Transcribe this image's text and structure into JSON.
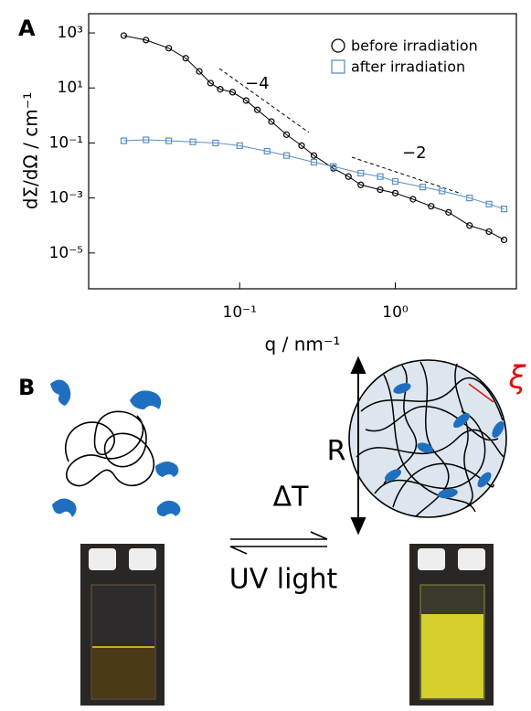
{
  "chart_data": {
    "type": "scatter",
    "xlabel": "q / nm⁻¹",
    "ylabel": "dΣ/dΩ / cm⁻¹",
    "xscale": "log",
    "yscale": "log",
    "xlim": [
      0.0107,
      6.0
    ],
    "ylim": [
      5e-07,
      5000
    ],
    "xticks": [
      {
        "value": 0.1,
        "label": "10⁻¹"
      },
      {
        "value": 1,
        "label": "10⁰"
      }
    ],
    "yticks": [
      {
        "value": 1000,
        "label": "10³"
      },
      {
        "value": 10,
        "label": "10¹"
      },
      {
        "value": 0.1,
        "label": "10⁻¹"
      },
      {
        "value": 0.001,
        "label": "10⁻³"
      },
      {
        "value": 1e-05,
        "label": "10⁻⁵"
      }
    ],
    "legend": "upper right",
    "annotations": [
      "−4",
      "−2"
    ],
    "series": [
      {
        "name": "before irradiation",
        "color": "#000000",
        "marker": "circle",
        "x": [
          0.018,
          0.025,
          0.035,
          0.045,
          0.055,
          0.065,
          0.075,
          0.09,
          0.11,
          0.13,
          0.16,
          0.2,
          0.25,
          0.3,
          0.4,
          0.5,
          0.6,
          0.8,
          1.0,
          1.3,
          1.7,
          2.2,
          3,
          4,
          5
        ],
        "values": [
          800,
          550,
          280,
          120,
          40,
          15,
          9,
          7,
          3.5,
          1.6,
          0.6,
          0.2,
          0.08,
          0.035,
          0.012,
          0.006,
          0.003,
          0.002,
          0.0015,
          0.0009,
          0.0005,
          0.0003,
          0.0001,
          6e-05,
          3e-05
        ]
      },
      {
        "name": "after irradiation",
        "color": "#5b8fc4",
        "marker": "square",
        "x": [
          0.018,
          0.025,
          0.035,
          0.05,
          0.07,
          0.1,
          0.15,
          0.2,
          0.3,
          0.4,
          0.6,
          0.8,
          1.0,
          1.5,
          2,
          3,
          4,
          5
        ],
        "values": [
          0.12,
          0.13,
          0.12,
          0.11,
          0.1,
          0.08,
          0.05,
          0.035,
          0.02,
          0.014,
          0.008,
          0.006,
          0.004,
          0.0025,
          0.0018,
          0.001,
          0.0006,
          0.0004
        ]
      }
    ]
  },
  "panel_labels": [
    "A",
    "B"
  ],
  "diagram": {
    "radius_label": "R",
    "mesh_label": "ξ",
    "forward_label": "ΔT",
    "reverse_label": "UV light"
  }
}
